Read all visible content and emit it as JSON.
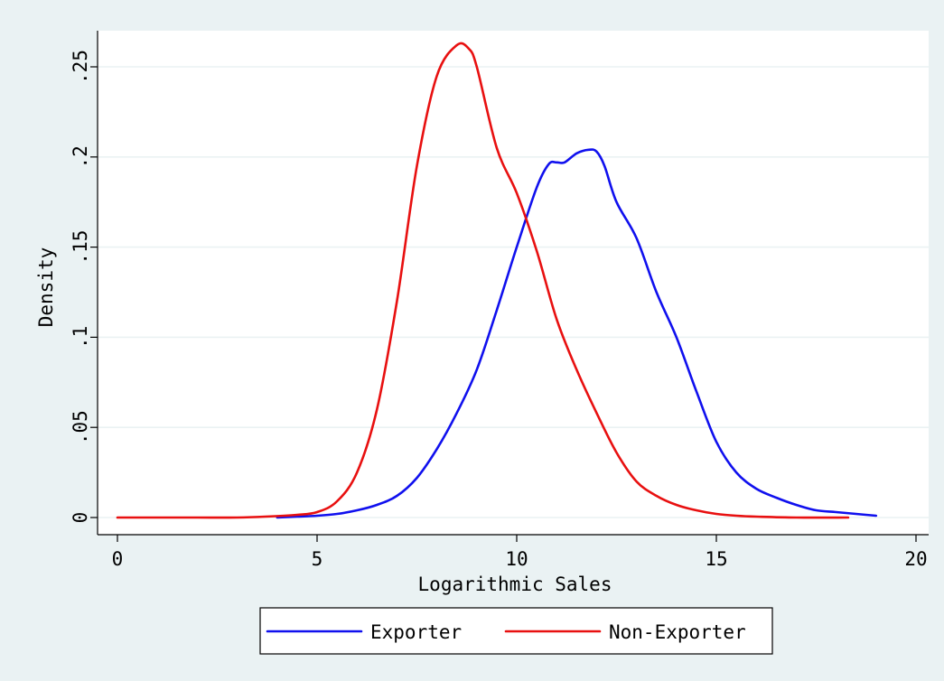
{
  "chart_data": {
    "type": "line",
    "title": "",
    "xlabel": "Logarithmic Sales",
    "ylabel": "Density",
    "xlim": [
      0,
      20
    ],
    "ylim": [
      0,
      0.25
    ],
    "x_ticks": [
      0,
      5,
      10,
      15,
      20
    ],
    "x_tick_labels": [
      "0",
      "5",
      "10",
      "15",
      "20"
    ],
    "y_ticks": [
      0,
      0.05,
      0.1,
      0.15,
      0.2,
      0.25
    ],
    "y_tick_labels": [
      "0",
      ".05",
      ".1",
      ".15",
      ".2",
      ".25"
    ],
    "grid": "horizontal",
    "legend_position": "bottom",
    "background_color": "#eaf2f3",
    "series": [
      {
        "name": "Exporter",
        "color": "#1010ee",
        "x": [
          4.0,
          4.5,
          5.0,
          5.5,
          6.0,
          6.5,
          7.0,
          7.5,
          8.0,
          8.5,
          9.0,
          9.5,
          10.0,
          10.5,
          10.8,
          11.0,
          11.2,
          11.5,
          11.8,
          12.0,
          12.2,
          12.5,
          13.0,
          13.5,
          14.0,
          14.5,
          15.0,
          15.5,
          16.0,
          16.5,
          17.0,
          17.5,
          18.0,
          18.5,
          19.0
        ],
        "y": [
          0.0,
          0.0005,
          0.001,
          0.002,
          0.004,
          0.007,
          0.012,
          0.022,
          0.038,
          0.058,
          0.082,
          0.115,
          0.15,
          0.183,
          0.196,
          0.197,
          0.197,
          0.202,
          0.204,
          0.203,
          0.195,
          0.175,
          0.155,
          0.125,
          0.1,
          0.07,
          0.042,
          0.025,
          0.016,
          0.011,
          0.007,
          0.004,
          0.003,
          0.002,
          0.001
        ]
      },
      {
        "name": "Non-Exporter",
        "color": "#e81010",
        "x": [
          0.0,
          1.0,
          2.0,
          3.0,
          3.7,
          4.5,
          5.0,
          5.5,
          6.0,
          6.5,
          7.0,
          7.5,
          8.0,
          8.5,
          8.8,
          9.0,
          9.5,
          10.0,
          10.5,
          11.0,
          11.5,
          12.0,
          12.5,
          13.0,
          13.5,
          14.0,
          14.5,
          15.0,
          15.5,
          16.0,
          17.0,
          18.3
        ],
        "y": [
          0.0,
          0.0,
          0.0,
          0.0,
          0.0005,
          0.0015,
          0.003,
          0.009,
          0.025,
          0.06,
          0.12,
          0.195,
          0.245,
          0.262,
          0.26,
          0.25,
          0.205,
          0.18,
          0.148,
          0.11,
          0.082,
          0.058,
          0.036,
          0.02,
          0.012,
          0.007,
          0.004,
          0.002,
          0.001,
          0.0005,
          0.0,
          0.0
        ]
      }
    ]
  }
}
